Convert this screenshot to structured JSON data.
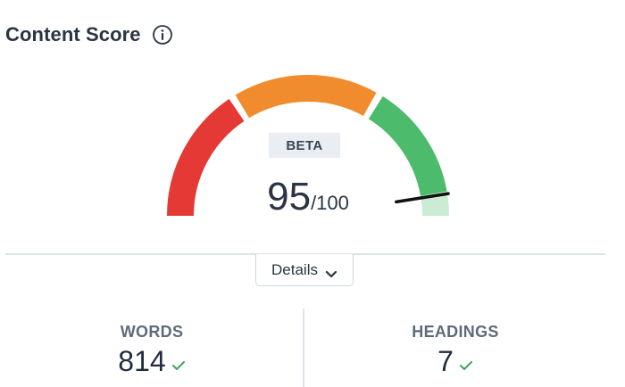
{
  "header": {
    "title": "Content Score"
  },
  "gauge": {
    "score": 95,
    "max": 100,
    "score_text": "95",
    "max_text": "/100",
    "badge": "BETA",
    "segment_colors": {
      "low": "#e53935",
      "mid": "#f08c2e",
      "high": "#4cbb6c",
      "high_light": "#ccebd4",
      "needle": "#111111"
    }
  },
  "details": {
    "label": "Details",
    "icon": "chevron-down-icon"
  },
  "stats": [
    {
      "label": "WORDS",
      "value": "814",
      "status": "check"
    },
    {
      "label": "HEADINGS",
      "value": "7",
      "status": "check"
    }
  ],
  "colors": {
    "check": "#3fa55b",
    "divider": "#dde3ea",
    "badge_bg": "#eaeef2"
  }
}
